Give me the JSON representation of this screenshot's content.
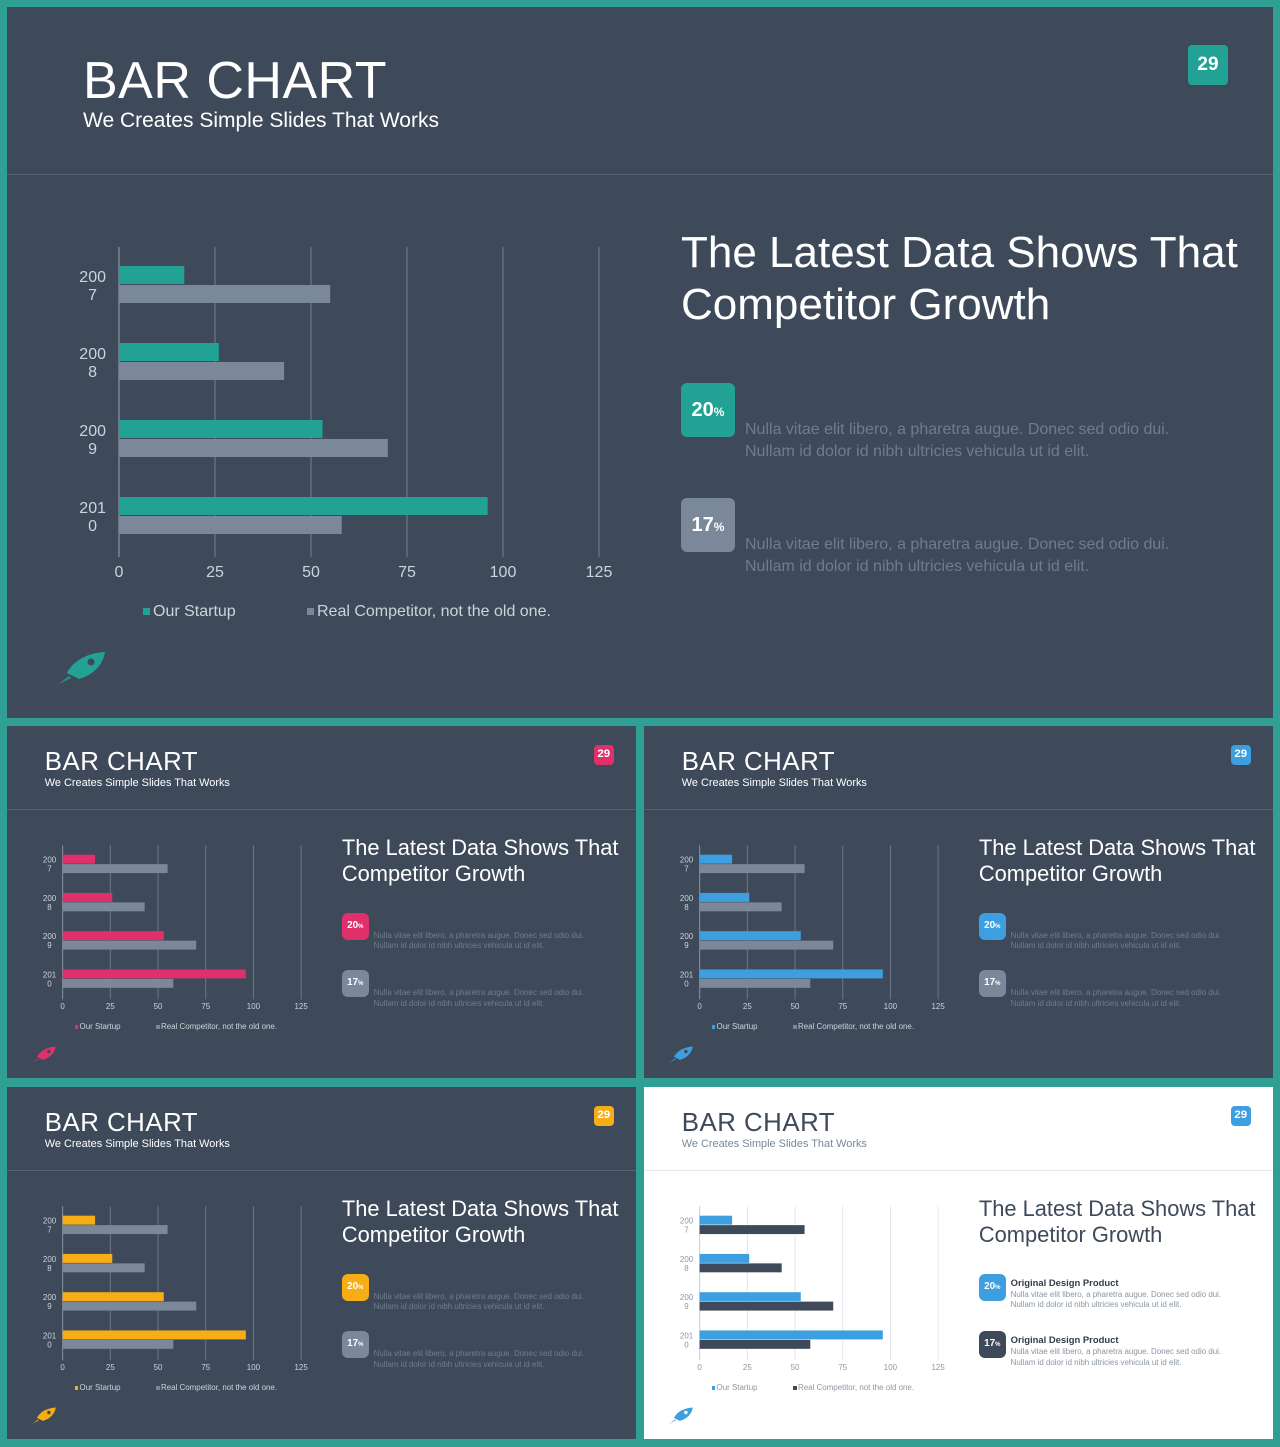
{
  "slide": {
    "title": "BAR CHART",
    "subtitle": "We Creates Simple Slides That Works",
    "page_number": "29",
    "headline_line1": "The Latest Data Shows That",
    "headline_line2": "Competitor Growth",
    "stats": [
      {
        "value": "20",
        "unit": "%",
        "text_line1": "Nulla vitae elit libero, a pharetra augue. Donec sed odio dui.",
        "text_line2": "Nullam id dolor id nibh ultricies vehicula ut id elit."
      },
      {
        "value": "17",
        "unit": "%",
        "text_line1": "Nulla vitae elit libero, a pharetra augue. Donec sed odio dui.",
        "text_line2": "Nullam id dolor id nibh ultricies vehicula ut id elit."
      }
    ],
    "product_label": "Original Design Product"
  },
  "chart_data": {
    "type": "bar",
    "orientation": "horizontal",
    "categories": [
      {
        "top": "200",
        "bottom": "7"
      },
      {
        "top": "200",
        "bottom": "8"
      },
      {
        "top": "200",
        "bottom": "9"
      },
      {
        "top": "201",
        "bottom": "0"
      }
    ],
    "series": [
      {
        "name": "Our Startup",
        "values": [
          17,
          26,
          53,
          96
        ]
      },
      {
        "name": "Real Competitor, not the old one.",
        "values": [
          55,
          43,
          70,
          58
        ]
      }
    ],
    "xlim": [
      0,
      125
    ],
    "xticks": [
      0,
      25,
      50,
      75,
      100,
      125
    ],
    "grid": true,
    "legend_position": "bottom"
  },
  "variants": [
    {
      "id": "teal",
      "theme": "dark",
      "accent": "#22a294",
      "secondary": "#7a8899"
    },
    {
      "id": "pink",
      "theme": "dark",
      "accent": "#e0306b",
      "secondary": "#7a8899"
    },
    {
      "id": "blue",
      "theme": "dark",
      "accent": "#3d9ee0",
      "secondary": "#7a8899"
    },
    {
      "id": "yellow",
      "theme": "dark",
      "accent": "#f7ad16",
      "secondary": "#7a8899"
    },
    {
      "id": "light",
      "theme": "light",
      "accent": "#3d9ee0",
      "secondary": "#3e4a5a"
    }
  ]
}
